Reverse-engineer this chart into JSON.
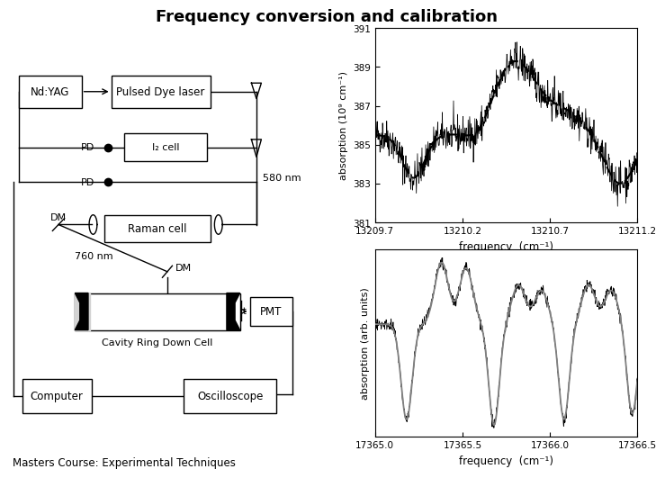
{
  "title": "Frequency conversion and calibration",
  "subtitle": "Masters Course: Experimental Techniques",
  "bg_color": "#ffffff",
  "plot1": {
    "xlabel": "frequency  (cm⁻¹)",
    "ylabel": "absorption (10⁹ cm⁻¹)",
    "xmin": 13209.7,
    "xmax": 13211.2,
    "ymin": 381.0,
    "ymax": 391.0,
    "xticks": [
      13209.7,
      13210.2,
      13210.7,
      13211.2
    ],
    "yticks": [
      381.0,
      383.0,
      385.0,
      387.0,
      389.0,
      391.0
    ]
  },
  "plot2": {
    "xlabel": "frequency  (cm⁻¹)",
    "ylabel": "absorption (arb. units)",
    "xmin": 17365.0,
    "xmax": 17366.5,
    "xticks": [
      17365.0,
      17365.5,
      17366.0,
      17366.5
    ]
  }
}
